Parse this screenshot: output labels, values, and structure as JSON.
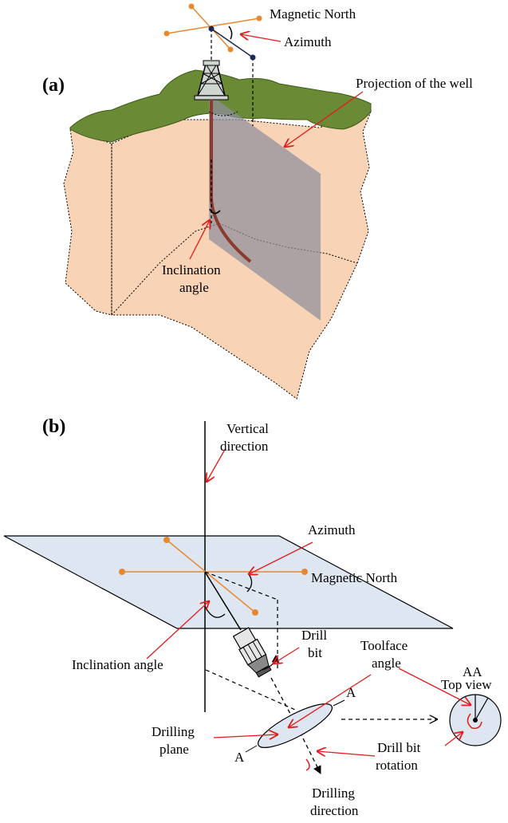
{
  "panel_a": {
    "tag": "(a)",
    "magnetic_north": "Magnetic North",
    "azimuth": "Azimuth",
    "projection": "Projection of the well",
    "inclination_line1": "Inclination",
    "inclination_line2": "angle"
  },
  "panel_b": {
    "tag": "(b)",
    "vertical_line1": "Vertical",
    "vertical_line2": "direction",
    "azimuth": "Azimuth",
    "magnetic_north": "Magnetic North",
    "inclination": "Inclination angle",
    "drill_bit_line1": "Drill",
    "drill_bit_line2": "bit",
    "toolface_line1": "Toolface",
    "toolface_line2": "angle",
    "aa": "AA",
    "top_view": "Top view",
    "plane_a": "A",
    "drilling_plane_line1": "Drilling",
    "drilling_plane_line2": "plane",
    "drill_bit_rotation_line1": "Drill bit",
    "drill_bit_rotation_line2": "rotation",
    "drilling_direction_line1": "Drilling",
    "drilling_direction_line2": "direction"
  },
  "colors": {
    "soil": "#f9d3b5",
    "grass": "#6a8a35",
    "well": "#8b3a2e",
    "projection_plane": "#8f8f9c",
    "plane": "#dde6f1",
    "orange": "#e8872e",
    "navy": "#1b2a52",
    "red": "#e31b1b"
  }
}
